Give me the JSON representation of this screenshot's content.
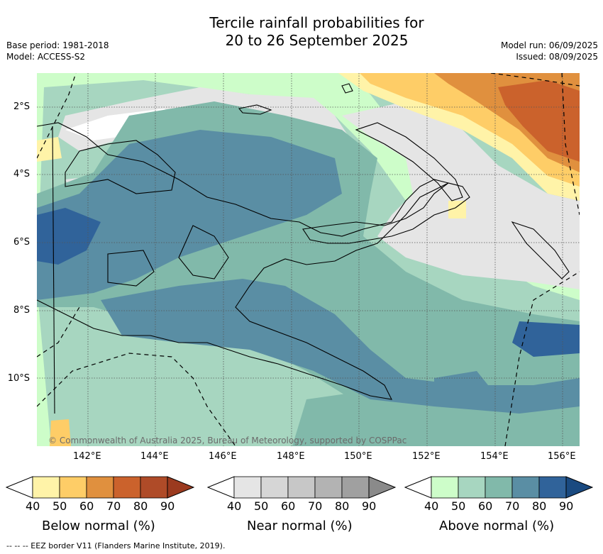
{
  "title": {
    "line1": "Tercile rainfall probabilities for",
    "line2": "20 to 26 September 2025"
  },
  "meta": {
    "base_period": "Base period: 1981-2018",
    "model": "Model: ACCESS-S2",
    "model_run": "Model run: 06/09/2025",
    "issued": "Issued: 08/09/2025"
  },
  "map": {
    "copyright": "© Commonwealth of Australia 2025, Bureau of Meteorology, supported by COSPPac",
    "lat_labels": [
      "2°S",
      "4°S",
      "6°S",
      "8°S",
      "10°S"
    ],
    "lon_labels": [
      "142°E",
      "144°E",
      "146°E",
      "148°E",
      "150°E",
      "152°E",
      "154°E",
      "156°E"
    ],
    "colors": {
      "near_40_50": "#e5e5e5",
      "below_40_50": "#fff3a8",
      "below_50_60": "#fecd67",
      "below_60_70": "#e0903e",
      "below_70_80": "#cb622c",
      "above_40_50": "#cdfdc9",
      "above_50_60": "#a7d6c0",
      "above_60_70": "#81b9aa",
      "above_70_80": "#5a8ea4",
      "above_80_90": "#30639a"
    }
  },
  "colorbars": [
    {
      "label": "Below normal (%)",
      "ticks": [
        "40",
        "50",
        "60",
        "70",
        "80",
        "90"
      ],
      "colors": [
        "#fff3a8",
        "#fecd67",
        "#e0903e",
        "#cb622c",
        "#af4b28",
        "#9b3a1f"
      ]
    },
    {
      "label": "Near normal (%)",
      "ticks": [
        "40",
        "50",
        "60",
        "70",
        "80",
        "90"
      ],
      "colors": [
        "#e5e5e5",
        "#d6d6d6",
        "#c7c7c7",
        "#b3b3b3",
        "#a0a0a0",
        "#8a8a8a"
      ]
    },
    {
      "label": "Above normal (%)",
      "ticks": [
        "40",
        "50",
        "60",
        "70",
        "80",
        "90"
      ],
      "colors": [
        "#cdfdc9",
        "#a7d6c0",
        "#81b9aa",
        "#5a8ea4",
        "#30639a",
        "#1a4a80"
      ]
    }
  ],
  "footer": "--  --  -- EEZ border V11 (Flanders Marine Institute, 2019)."
}
